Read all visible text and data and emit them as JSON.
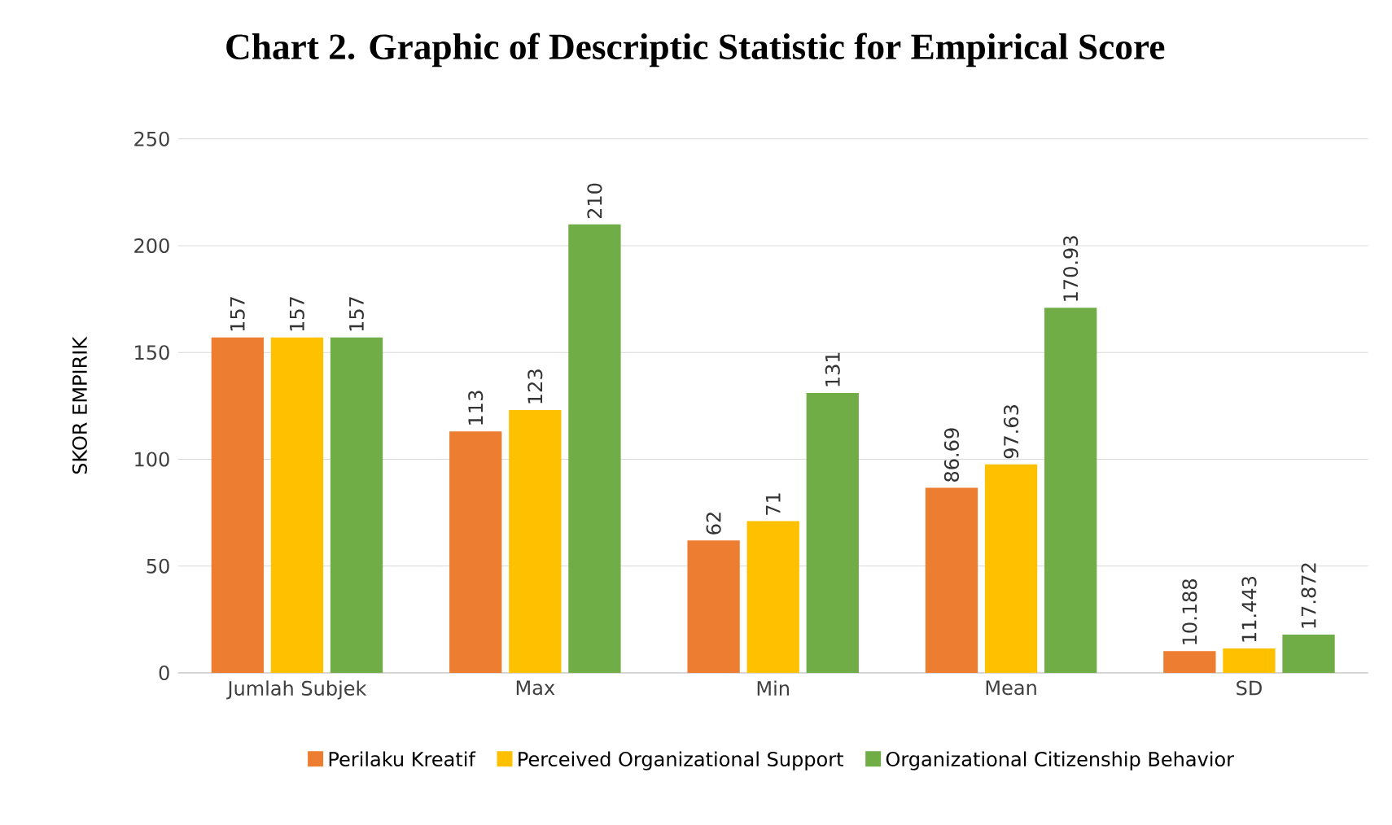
{
  "chart_data": {
    "type": "bar",
    "title": "Chart 2. Graphic of Descriptic Statistic for Empirical Score",
    "ylabel": "SKOR EMPIRIK",
    "categories": [
      "Jumlah Subjek",
      "Max",
      "Min",
      "Mean",
      "SD"
    ],
    "series": [
      {
        "name": "Perilaku Kreatif",
        "color": "#ed7d31",
        "values": [
          157,
          113,
          62,
          86.69,
          10.188
        ]
      },
      {
        "name": "Perceived Organizational Support",
        "color": "#ffc000",
        "values": [
          157,
          123,
          71,
          97.63,
          11.443
        ]
      },
      {
        "name": "Organizational Citizenship Behavior",
        "color": "#70ad47",
        "values": [
          157,
          210,
          131,
          170.93,
          17.872
        ]
      }
    ],
    "ylim": [
      0,
      250
    ],
    "yticks": [
      0,
      50,
      100,
      150,
      200,
      250
    ],
    "grid": "y",
    "legend": "bottom",
    "data_labels": true
  }
}
